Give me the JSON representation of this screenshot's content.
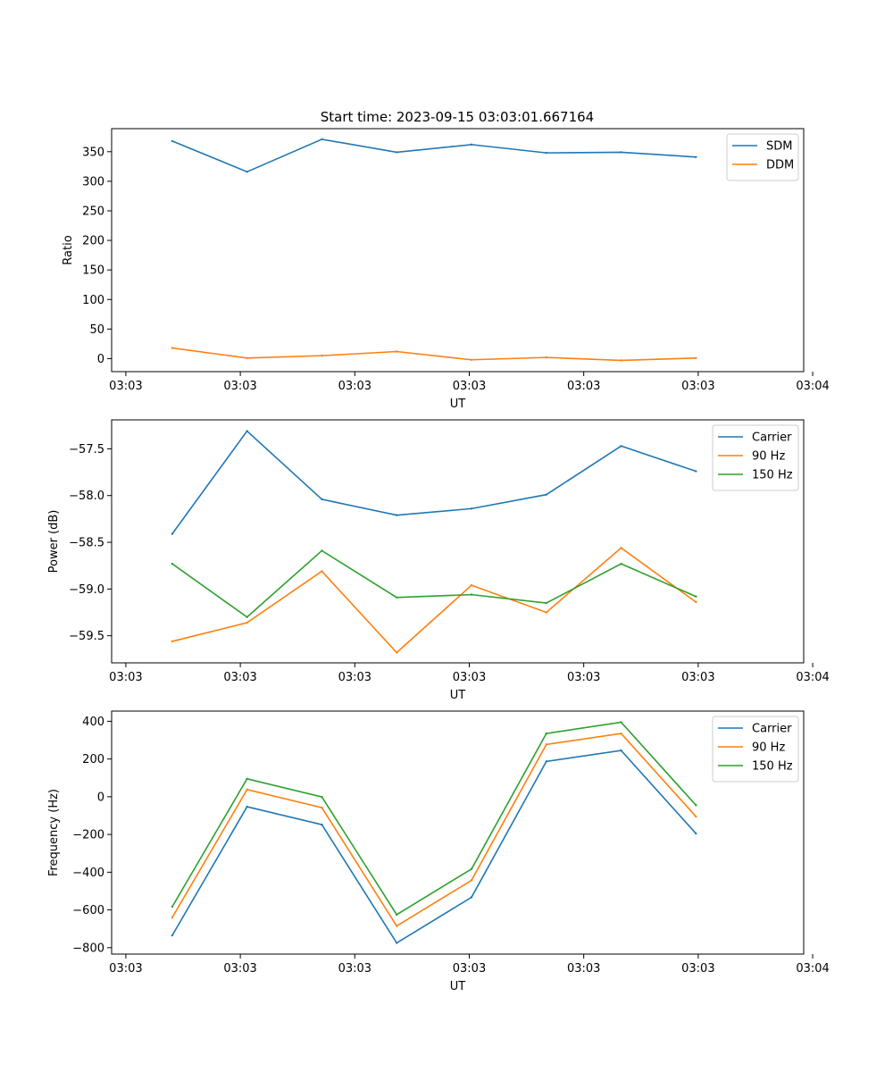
{
  "figure": {
    "title": "Start time: 2023-09-15 03:03:01.667164"
  },
  "chart_data": [
    {
      "type": "line",
      "title": "Start time: 2023-09-15 03:03:01.667164",
      "xlabel": "UT",
      "ylabel": "Ratio",
      "x": [
        1,
        2,
        3,
        4,
        5,
        6,
        7,
        8
      ],
      "xlim": [
        0.19,
        9.44
      ],
      "x_ticks": [
        0.38,
        1.91,
        3.44,
        4.97,
        6.5,
        8.03,
        9.56
      ],
      "x_tick_labels": [
        "03:03",
        "03:03",
        "03:03",
        "03:03",
        "03:03",
        "03:03",
        "03:04"
      ],
      "ylim": [
        -22,
        389
      ],
      "y_ticks": [
        0,
        50,
        100,
        150,
        200,
        250,
        300,
        350
      ],
      "y_tick_labels": [
        "0",
        "50",
        "100",
        "150",
        "200",
        "250",
        "300",
        "350"
      ],
      "legend": "top-right",
      "grid": false,
      "series": [
        {
          "name": "SDM",
          "color": "#1f77b4",
          "values": [
            368,
            316,
            371,
            349,
            362,
            348,
            349,
            341
          ]
        },
        {
          "name": "DDM",
          "color": "#ff7f0e",
          "values": [
            18,
            1,
            5,
            12,
            -2,
            2,
            -3,
            1
          ]
        }
      ]
    },
    {
      "type": "line",
      "title": "",
      "xlabel": "UT",
      "ylabel": "Power (dB)",
      "x": [
        1,
        2,
        3,
        4,
        5,
        6,
        7,
        8
      ],
      "xlim": [
        0.19,
        9.44
      ],
      "x_ticks": [
        0.38,
        1.91,
        3.44,
        4.97,
        6.5,
        8.03,
        9.56
      ],
      "x_tick_labels": [
        "03:03",
        "03:03",
        "03:03",
        "03:03",
        "03:03",
        "03:03",
        "03:04"
      ],
      "ylim": [
        -59.79,
        -57.19
      ],
      "y_ticks": [
        -59.5,
        -59.0,
        -58.5,
        -58.0,
        -57.5
      ],
      "y_tick_labels": [
        "−59.5",
        "−59.0",
        "−58.5",
        "−58.0",
        "−57.5"
      ],
      "legend": "top-right",
      "grid": false,
      "series": [
        {
          "name": "Carrier",
          "color": "#1f77b4",
          "values": [
            -58.41,
            -57.31,
            -58.04,
            -58.21,
            -58.14,
            -57.99,
            -57.47,
            -57.74
          ]
        },
        {
          "name": "90 Hz",
          "color": "#ff7f0e",
          "values": [
            -59.56,
            -59.36,
            -58.81,
            -59.68,
            -58.96,
            -59.25,
            -58.56,
            -59.14
          ]
        },
        {
          "name": "150 Hz",
          "color": "#2ca02c",
          "values": [
            -58.73,
            -59.3,
            -58.59,
            -59.09,
            -59.06,
            -59.15,
            -58.73,
            -59.08
          ]
        }
      ]
    },
    {
      "type": "line",
      "title": "",
      "xlabel": "UT",
      "ylabel": "Frequency (Hz)",
      "x": [
        1,
        2,
        3,
        4,
        5,
        6,
        7,
        8
      ],
      "xlim": [
        0.19,
        9.44
      ],
      "x_ticks": [
        0.38,
        1.91,
        3.44,
        4.97,
        6.5,
        8.03,
        9.56
      ],
      "x_tick_labels": [
        "03:03",
        "03:03",
        "03:03",
        "03:03",
        "03:03",
        "03:03",
        "03:04"
      ],
      "ylim": [
        -834,
        454
      ],
      "y_ticks": [
        -800,
        -600,
        -400,
        -200,
        0,
        200,
        400
      ],
      "y_tick_labels": [
        "−800",
        "−600",
        "−400",
        "−200",
        "0",
        "200",
        "400"
      ],
      "legend": "top-right",
      "grid": false,
      "series": [
        {
          "name": "Carrier",
          "color": "#1f77b4",
          "values": [
            -735,
            -53,
            -148,
            -775,
            -533,
            187,
            245,
            -195
          ]
        },
        {
          "name": "90 Hz",
          "color": "#ff7f0e",
          "values": [
            -640,
            38,
            -58,
            -685,
            -443,
            277,
            335,
            -105
          ]
        },
        {
          "name": "150 Hz",
          "color": "#2ca02c",
          "values": [
            -583,
            95,
            -1,
            -625,
            -383,
            335,
            395,
            -45
          ]
        }
      ]
    }
  ]
}
